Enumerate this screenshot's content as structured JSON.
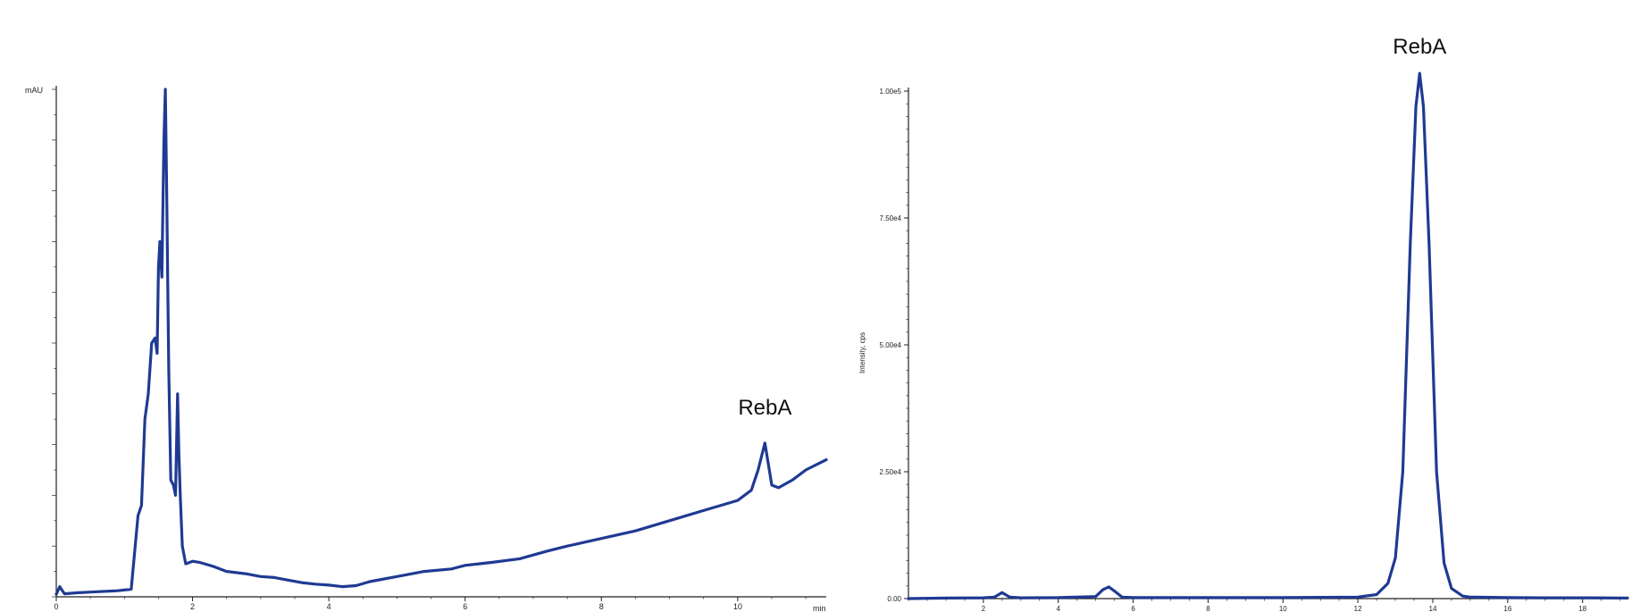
{
  "colors": {
    "trace": "#1f3a93",
    "axis": "#222222",
    "background": "#ffffff"
  },
  "chart_data": [
    {
      "type": "line",
      "title": "",
      "xlabel": "min",
      "ylabel": "mAU",
      "xlim": [
        0,
        11.3
      ],
      "ylim": [
        0,
        100
      ],
      "x_ticks": [
        0,
        2,
        4,
        6,
        8,
        10
      ],
      "y_ticks_labeled": false,
      "annotations": [
        {
          "text": "RebA",
          "x": 10.4,
          "y": 30.3
        }
      ],
      "series": [
        {
          "x": [
            0,
            0.05,
            0.12,
            0.3,
            0.6,
            0.9,
            1.1,
            1.2,
            1.25,
            1.3,
            1.35,
            1.4,
            1.45,
            1.48,
            1.5,
            1.52,
            1.55,
            1.58,
            1.6,
            1.62,
            1.65,
            1.68,
            1.72,
            1.75,
            1.78,
            1.8,
            1.82,
            1.85,
            1.9,
            2.0,
            2.1,
            2.3,
            2.5,
            2.8,
            3.0,
            3.2,
            3.4,
            3.6,
            3.8,
            4.0,
            4.2,
            4.4,
            4.6,
            5.0,
            5.4,
            5.8,
            6.0,
            6.2,
            6.4,
            6.8,
            7.2,
            7.5,
            8.0,
            8.5,
            9.0,
            9.5,
            10.0,
            10.2,
            10.3,
            10.4,
            10.5,
            10.6,
            10.8,
            11.0,
            11.3
          ],
          "values": [
            0.5,
            2.0,
            0.6,
            0.8,
            1.0,
            1.2,
            1.5,
            16.0,
            18.0,
            35.0,
            40.0,
            50.0,
            51.0,
            48.0,
            65.0,
            70.0,
            63.0,
            90.0,
            100.0,
            80.0,
            45.0,
            23.0,
            22.0,
            20.0,
            40.0,
            28.0,
            20.0,
            10.0,
            6.5,
            7.0,
            6.8,
            6.0,
            5.0,
            4.5,
            4.0,
            3.8,
            3.3,
            2.8,
            2.5,
            2.3,
            2.0,
            2.2,
            3.0,
            4.0,
            5.0,
            5.5,
            6.2,
            6.5,
            6.8,
            7.5,
            9.0,
            10.0,
            11.5,
            13.0,
            15.0,
            17.0,
            19.0,
            21.0,
            25.0,
            30.3,
            22.0,
            21.5,
            23.0,
            25.0,
            27.0
          ]
        }
      ]
    },
    {
      "type": "line",
      "title": "",
      "xlabel": "",
      "ylabel": "Intensity, cps",
      "xlim": [
        0,
        19.2
      ],
      "ylim": [
        0,
        100000
      ],
      "x_ticks": [
        2,
        4,
        6,
        8,
        10,
        12,
        14,
        16,
        18
      ],
      "y_ticks": [
        0,
        25000,
        50000,
        75000,
        100000
      ],
      "y_tick_labels": [
        "0.00",
        "2.50e4",
        "5.00e4",
        "7.50e4",
        "1.00e5"
      ],
      "annotations": [
        {
          "text": "RebA",
          "x": 13.65,
          "y": 103500
        }
      ],
      "series": [
        {
          "x": [
            0,
            1.0,
            2.0,
            2.3,
            2.5,
            2.7,
            3.0,
            4.0,
            5.0,
            5.2,
            5.35,
            5.5,
            5.7,
            6.0,
            8.0,
            10.0,
            12.0,
            12.5,
            12.8,
            13.0,
            13.2,
            13.4,
            13.55,
            13.65,
            13.75,
            13.9,
            14.1,
            14.3,
            14.5,
            14.8,
            15.0,
            16.0,
            17.0,
            18.0,
            19.2
          ],
          "values": [
            0,
            100,
            150,
            300,
            1200,
            300,
            150,
            200,
            400,
            1800,
            2300,
            1500,
            300,
            200,
            200,
            200,
            300,
            800,
            3000,
            8000,
            25000,
            70000,
            97000,
            103500,
            97000,
            70000,
            25000,
            7000,
            2000,
            500,
            300,
            200,
            150,
            150,
            100
          ]
        }
      ]
    }
  ]
}
